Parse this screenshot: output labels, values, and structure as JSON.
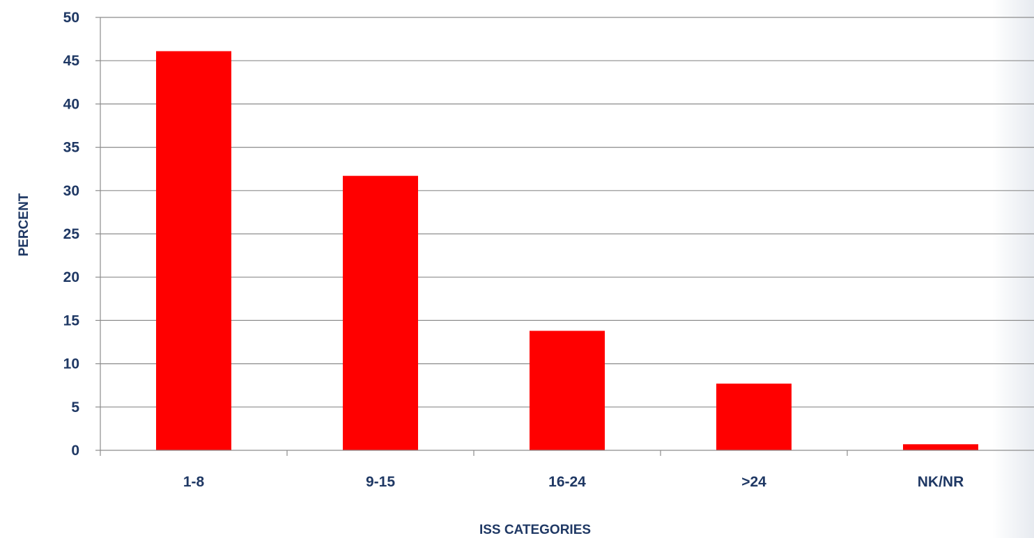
{
  "chart_data": {
    "type": "bar",
    "categories": [
      "1-8",
      "9-15",
      "16-24",
      ">24",
      "NK/NR"
    ],
    "values": [
      46.1,
      31.7,
      13.8,
      7.7,
      0.7
    ],
    "title": "",
    "xlabel": "ISS CATEGORIES",
    "ylabel": "PERCENT",
    "ylim": [
      0,
      50
    ],
    "yticks": [
      0,
      5,
      10,
      15,
      20,
      25,
      30,
      35,
      40,
      45,
      50
    ],
    "grid": true,
    "legend": "none"
  },
  "colors": {
    "bar": "#ff0000",
    "text": "#1f3864",
    "grid": "#8c8c8c",
    "axis": "#8c8c8c"
  }
}
